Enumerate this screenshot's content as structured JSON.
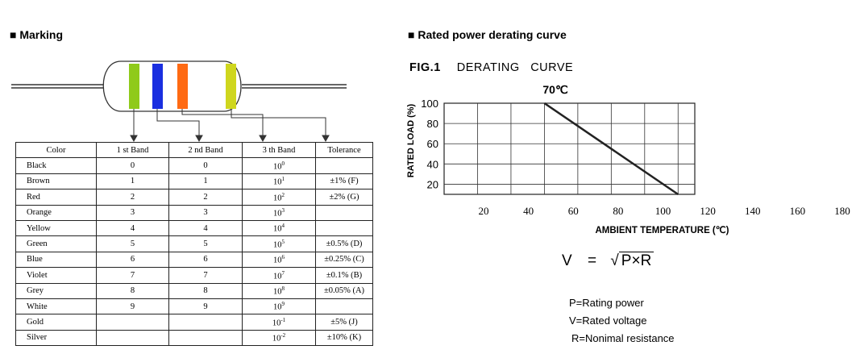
{
  "sections": {
    "marking_heading": "■ Marking",
    "derating_heading": "■ Rated power derating curve"
  },
  "resistor": {
    "band_colors": [
      "#8fca1a",
      "#1a2fe0",
      "#ff6a13",
      "#cfd61e"
    ]
  },
  "table": {
    "headers": [
      "Color",
      "1 st Band",
      "2 nd Band",
      "3 th Band",
      "Tolerance"
    ],
    "rows": [
      {
        "color": "Black",
        "b1": "0",
        "b2": "0",
        "mult_base": "10",
        "mult_exp": "0",
        "tol": ""
      },
      {
        "color": "Brown",
        "b1": "1",
        "b2": "1",
        "mult_base": "10",
        "mult_exp": "1",
        "tol": "±1% (F)"
      },
      {
        "color": "Red",
        "b1": "2",
        "b2": "2",
        "mult_base": "10",
        "mult_exp": "2",
        "tol": "±2% (G)"
      },
      {
        "color": "Orange",
        "b1": "3",
        "b2": "3",
        "mult_base": "10",
        "mult_exp": "3",
        "tol": ""
      },
      {
        "color": "Yellow",
        "b1": "4",
        "b2": "4",
        "mult_base": "10",
        "mult_exp": "4",
        "tol": ""
      },
      {
        "color": "Green",
        "b1": "5",
        "b2": "5",
        "mult_base": "10",
        "mult_exp": "5",
        "tol": "±0.5% (D)"
      },
      {
        "color": "Blue",
        "b1": "6",
        "b2": "6",
        "mult_base": "10",
        "mult_exp": "6",
        "tol": "±0.25% (C)"
      },
      {
        "color": "Violet",
        "b1": "7",
        "b2": "7",
        "mult_base": "10",
        "mult_exp": "7",
        "tol": "±0.1% (B)"
      },
      {
        "color": "Grey",
        "b1": "8",
        "b2": "8",
        "mult_base": "10",
        "mult_exp": "8",
        "tol": "±0.05% (A)"
      },
      {
        "color": "White",
        "b1": "9",
        "b2": "9",
        "mult_base": "10",
        "mult_exp": "9",
        "tol": ""
      },
      {
        "color": "Gold",
        "b1": "",
        "b2": "",
        "mult_base": "10",
        "mult_exp": "-1",
        "tol": "±5% (J)"
      },
      {
        "color": "Silver",
        "b1": "",
        "b2": "",
        "mult_base": "10",
        "mult_exp": "-2",
        "tol": "±10% (K)"
      }
    ]
  },
  "figure": {
    "fig_label": "FIG.1",
    "fig_title": "DERATING   CURVE",
    "annotation": "70℃"
  },
  "formula": {
    "lhs": "V",
    "equals": "=",
    "rhs": "P×R"
  },
  "notes": [
    "P=Rating power",
    "V=Rated voltage",
    "R=Nonimal resistance"
  ],
  "chart_data": {
    "type": "line",
    "title": "",
    "xlabel": "AMBIENT TEMPERATURE (℃)",
    "ylabel": "RATED LOAD (%)",
    "x_ticks": [
      20,
      40,
      60,
      80,
      100,
      120,
      140,
      160,
      180
    ],
    "y_ticks": [
      20,
      40,
      60,
      80,
      100
    ],
    "xlim": [
      10,
      180
    ],
    "ylim": [
      10,
      100
    ],
    "grid": true,
    "series": [
      {
        "x": [
          70,
          150
        ],
        "y": [
          100,
          10
        ]
      }
    ]
  }
}
